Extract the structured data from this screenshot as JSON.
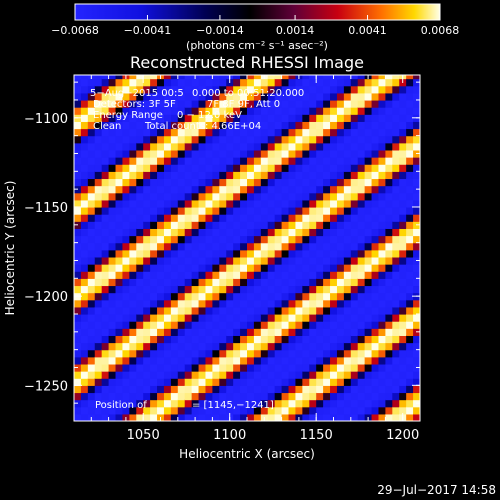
{
  "chart_data": {
    "type": "heatmap",
    "title": "Reconstructed RHESSI Image",
    "xlabel": "Heliocentric X (arcsec)",
    "ylabel": "Heliocentric Y (arcsec)",
    "xlim": [
      1010,
      1210
    ],
    "ylim": [
      -1270,
      -1076
    ],
    "x_ticks": [
      {
        "value": 1050,
        "label": "1050"
      },
      {
        "value": 1100,
        "label": "1100"
      },
      {
        "value": 1150,
        "label": "1150"
      },
      {
        "value": 1200,
        "label": "1200"
      }
    ],
    "y_ticks": [
      {
        "value": -1100,
        "label": "−1100"
      },
      {
        "value": -1150,
        "label": "−1150"
      },
      {
        "value": -1200,
        "label": "−1200"
      },
      {
        "value": -1250,
        "label": "−1250"
      }
    ],
    "colorbar": {
      "range": [
        -0.0068,
        0.0068
      ],
      "ticks": [
        {
          "value": -0.0068,
          "label": "−0.0068"
        },
        {
          "value": -0.0041,
          "label": "−0.0041"
        },
        {
          "value": -0.0014,
          "label": "−0.0014"
        },
        {
          "value": 0.0014,
          "label": "0.0014"
        },
        {
          "value": 0.0041,
          "label": "0.0041"
        },
        {
          "value": 0.0068,
          "label": "0.0068"
        }
      ],
      "unit_label": "(photons cm⁻² s⁻¹ asec⁻²)"
    },
    "annotations": [
      "5−Aug−2015 00:5",
      "0.000 to 00:51:20.000",
      "Detectors: 3F 5F",
      "7F 8F 9F, Att 0",
      "Energy Range",
      "0 − 12.0 keV",
      "Clean",
      "Total counts: 4.66E+04",
      "Position of",
      "= [1145,−1241]"
    ],
    "pattern": {
      "description_free": true,
      "stripe_angle_deg": 34,
      "stripe_period_arcsec": 40,
      "pixel_arcsec": 4
    }
  },
  "footer": {
    "timestamp": "29−Jul−2017 14:58"
  },
  "colors": {
    "background": "#000000",
    "foreground": "#ffffff",
    "colormap": [
      "#2020ff",
      "#1010e0",
      "#000040",
      "#000000",
      "#500030",
      "#c00010",
      "#ff6000",
      "#ffd000",
      "#ffffe0"
    ]
  }
}
